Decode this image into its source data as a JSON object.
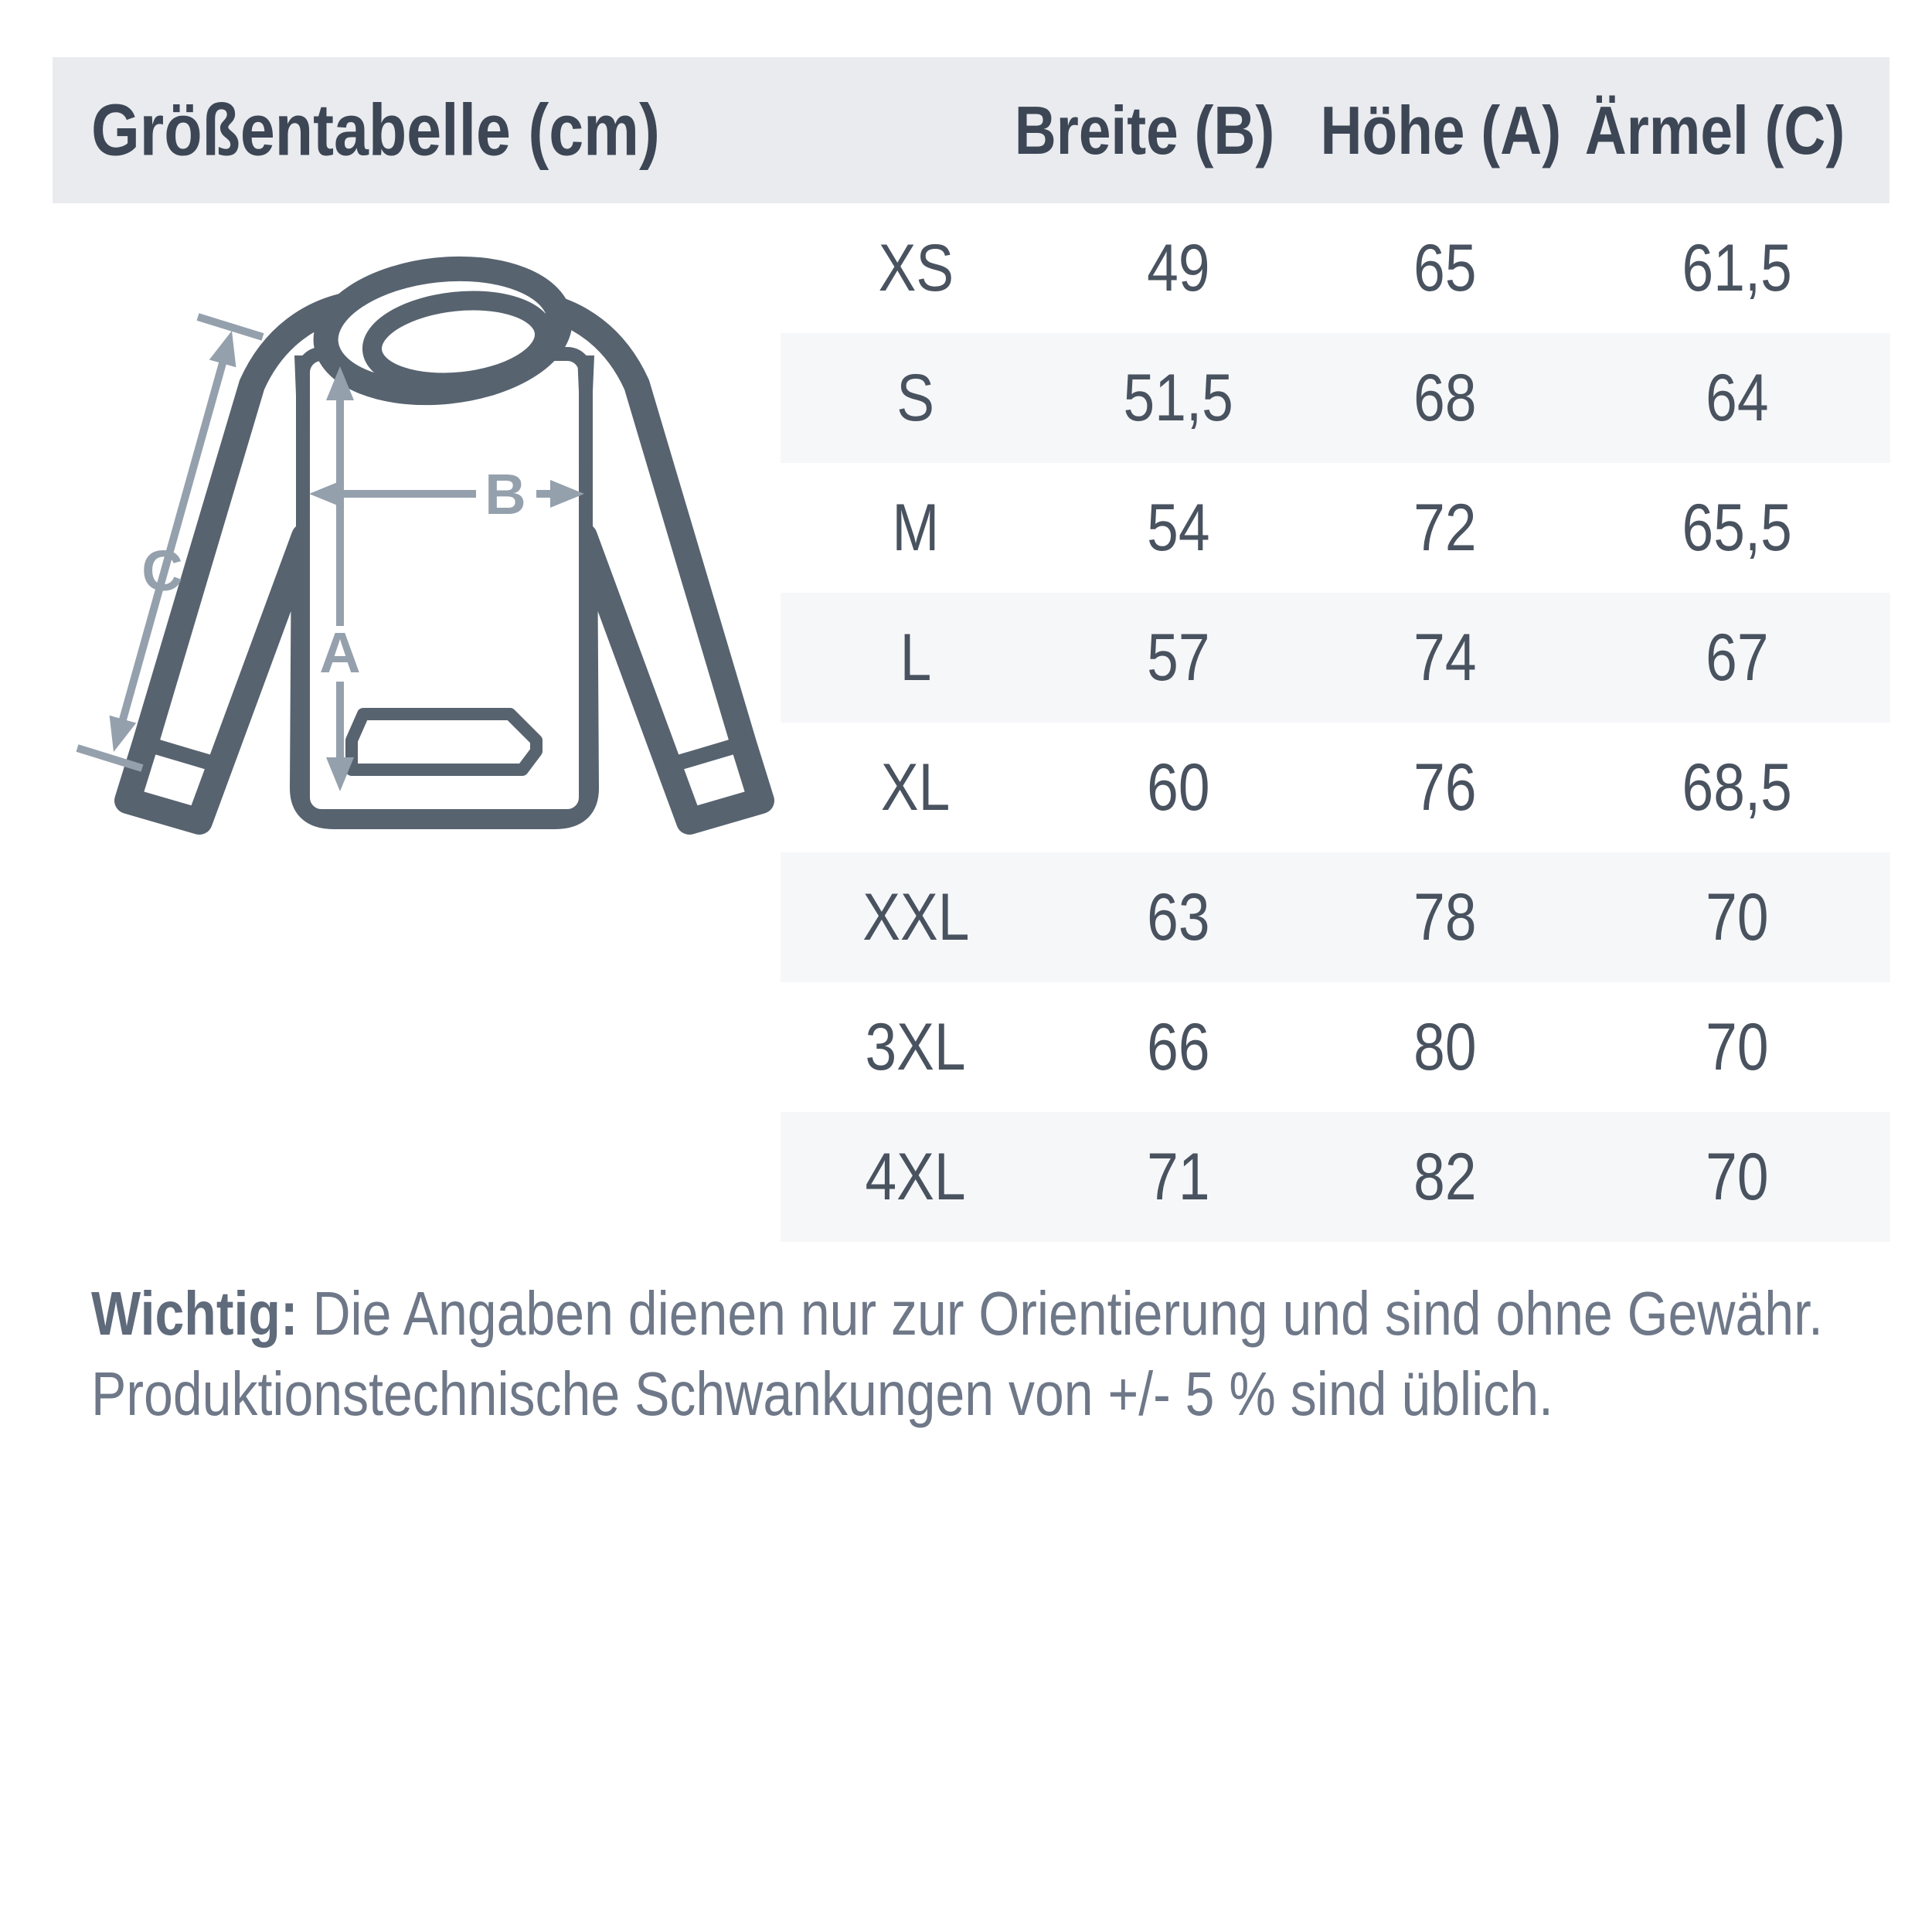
{
  "header": {
    "title": "Größentabelle (cm)",
    "columns": {
      "breite": "Breite (B)",
      "hoehe": "Höhe (A)",
      "aermel": "Ärmel (C)"
    }
  },
  "table": {
    "rows": [
      [
        "XS",
        "49",
        "65",
        "61,5"
      ],
      [
        "S",
        "51,5",
        "68",
        "64"
      ],
      [
        "M",
        "54",
        "72",
        "65,5"
      ],
      [
        "L",
        "57",
        "74",
        "67"
      ],
      [
        "XL",
        "60",
        "76",
        "68,5"
      ],
      [
        "XXL",
        "63",
        "78",
        "70"
      ],
      [
        "3XL",
        "66",
        "80",
        "70"
      ],
      [
        "4XL",
        "71",
        "82",
        "70"
      ]
    ]
  },
  "diagram": {
    "label_a": "A",
    "label_b": "B",
    "label_c": "C"
  },
  "footnote": {
    "label": "Wichtig:",
    "line1_rest": " Die Angaben dienen nur zur Orientierung und sind ohne Gewähr.",
    "line2": "Produktionstechnische Schwankungen von +/- 5 % sind üblich."
  },
  "colors": {
    "header_background": "#e9ebee",
    "stripe_background": "#f6f7f9",
    "heading_text": "#3d4655",
    "table_text": "#49525f",
    "footnote_text": "#6e7888",
    "hoodie_outline": "#57636f",
    "measurement_arrows": "#95a0ad"
  }
}
